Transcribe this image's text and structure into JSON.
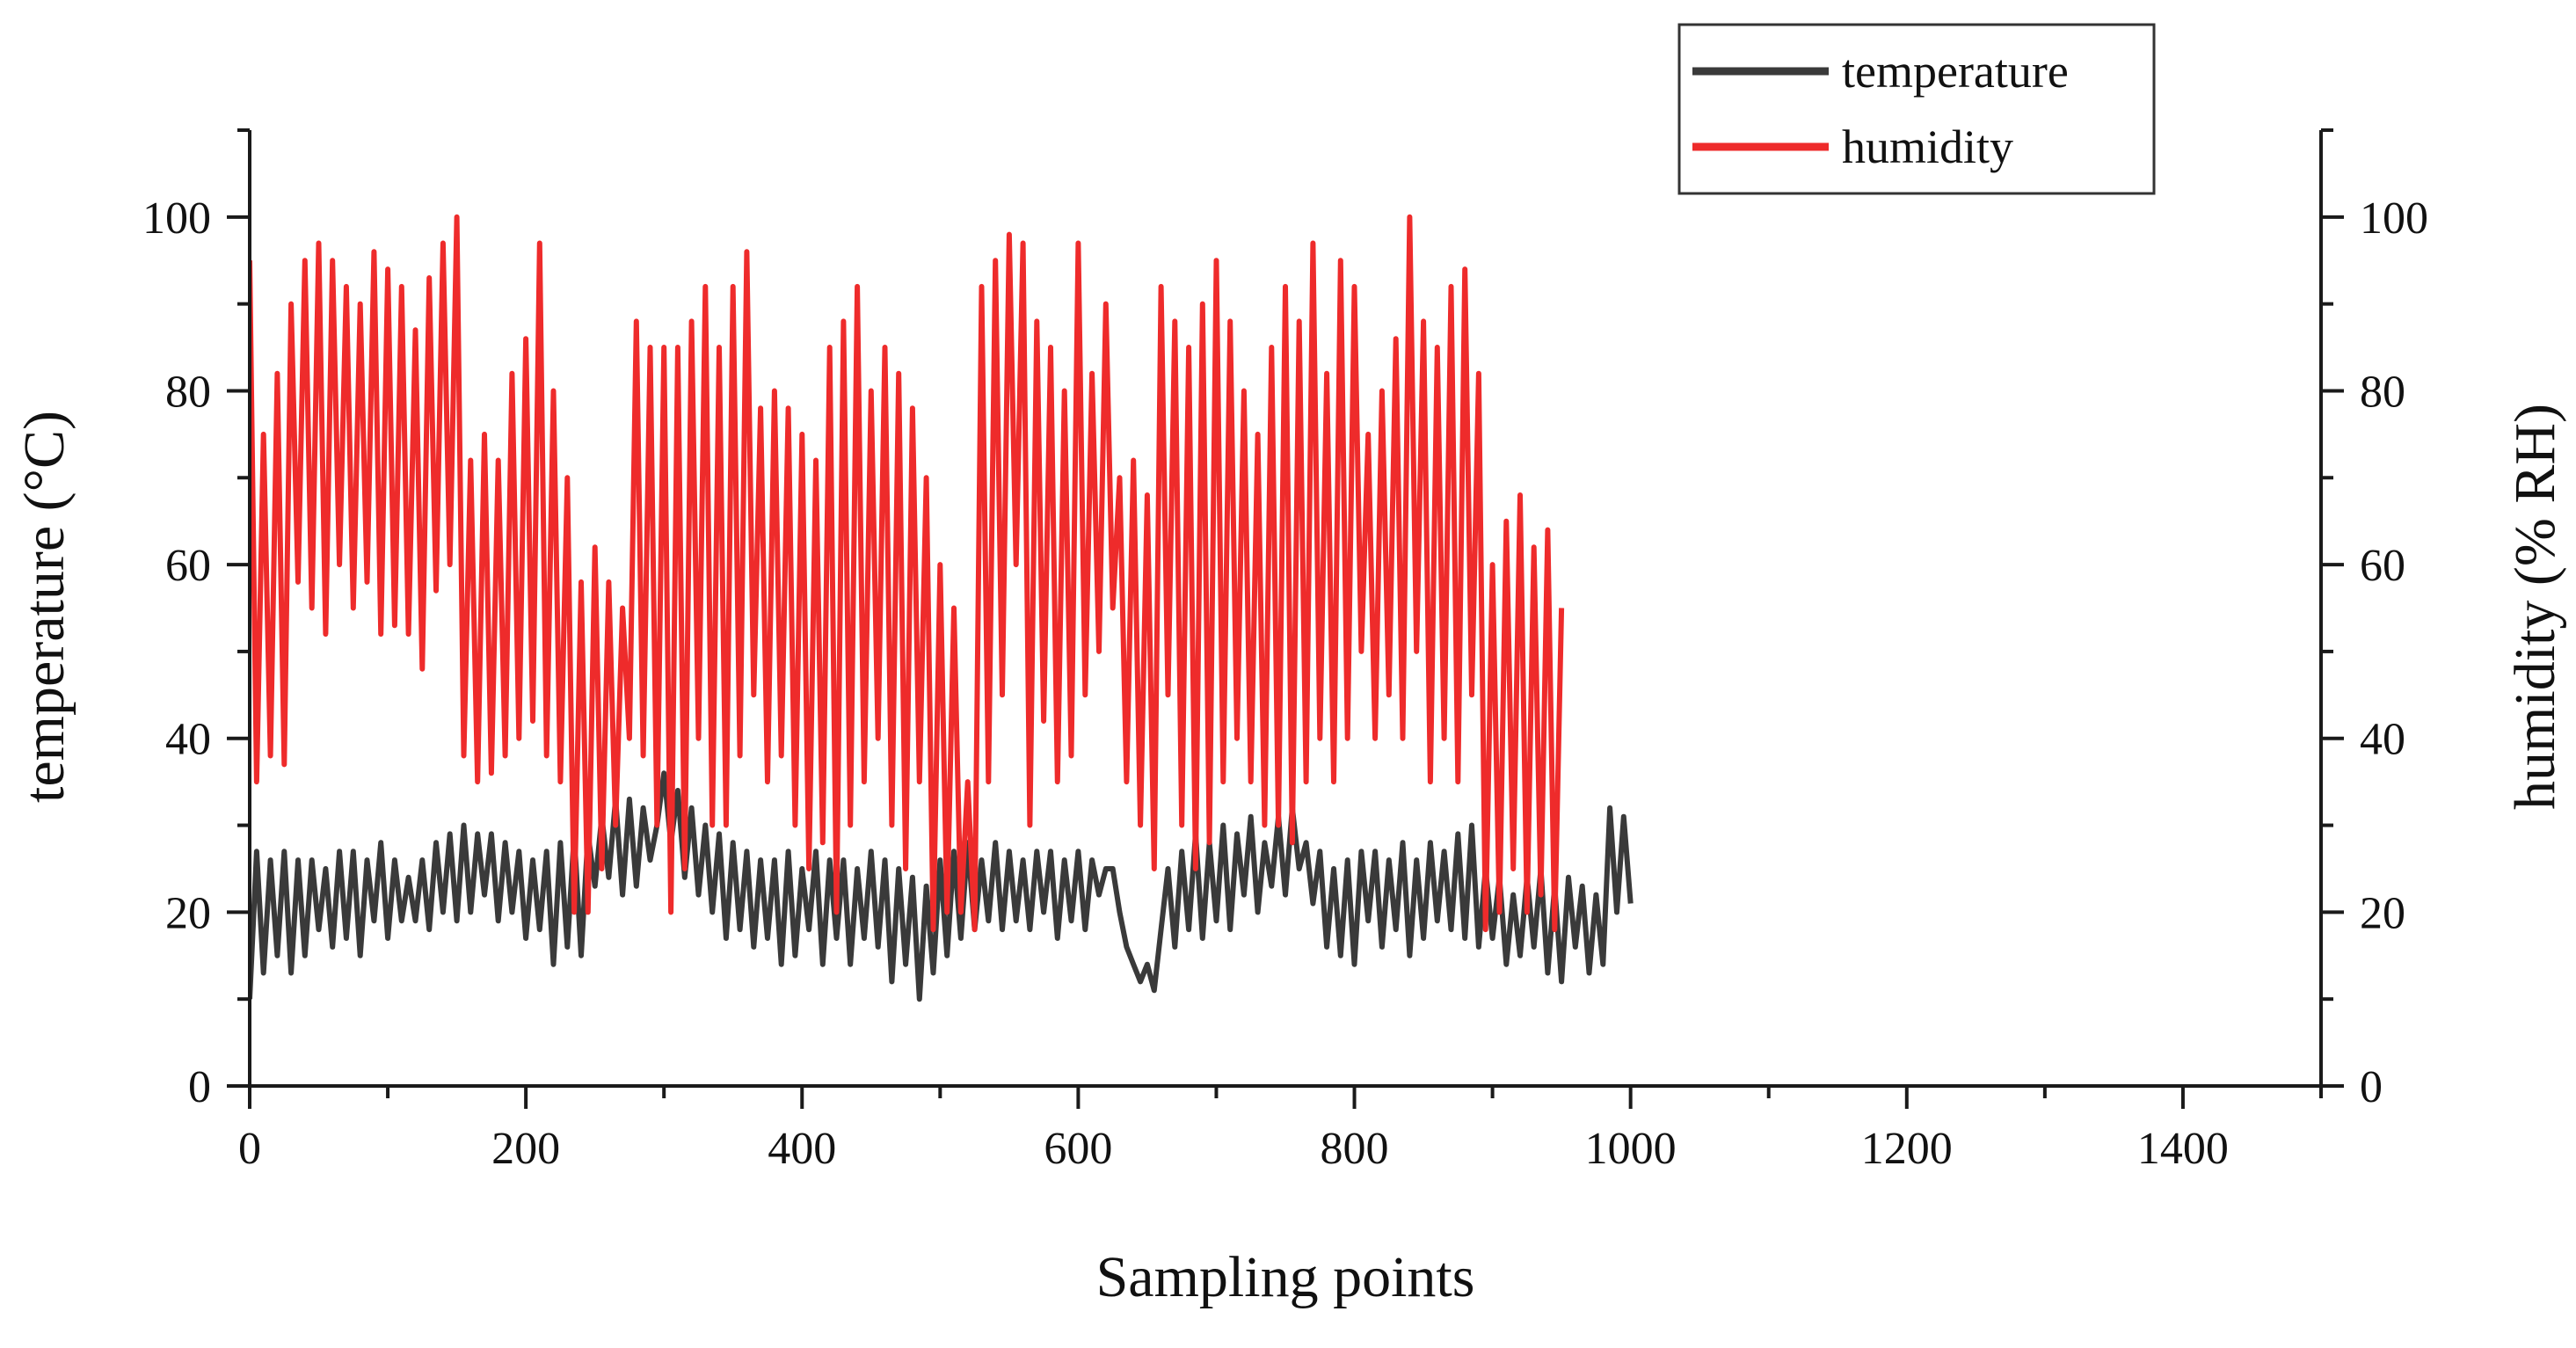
{
  "chart_data": {
    "type": "line",
    "x_axis": {
      "label": "Sampling points",
      "range": [
        0,
        1500
      ],
      "ticks": [
        0,
        200,
        400,
        600,
        800,
        1000,
        1200,
        1400
      ]
    },
    "y_left": {
      "label": "temperature (°C)",
      "range": [
        0,
        110
      ],
      "ticks": [
        0,
        20,
        40,
        60,
        80,
        100
      ]
    },
    "y_right": {
      "label": "humidity (% RH)",
      "range": [
        0,
        110
      ],
      "ticks": [
        0,
        20,
        40,
        60,
        80,
        100
      ]
    },
    "legend": {
      "position": "top-right",
      "entries": [
        "temperature",
        "humidity"
      ]
    },
    "colors": {
      "temperature": "#3a3a3a",
      "humidity": "#ee2b2b"
    },
    "series": [
      {
        "name": "temperature",
        "axis": "left",
        "x_step": 5,
        "values": [
          10,
          27,
          13,
          26,
          15,
          27,
          13,
          26,
          15,
          26,
          18,
          25,
          16,
          27,
          17,
          27,
          15,
          26,
          19,
          28,
          17,
          26,
          19,
          24,
          19,
          26,
          18,
          28,
          20,
          29,
          19,
          30,
          20,
          29,
          22,
          29,
          19,
          28,
          20,
          27,
          17,
          26,
          18,
          27,
          14,
          28,
          16,
          29,
          15,
          29,
          23,
          31,
          24,
          33,
          22,
          33,
          23,
          32,
          26,
          30,
          36,
          28,
          34,
          24,
          32,
          22,
          30,
          20,
          29,
          17,
          28,
          18,
          27,
          16,
          26,
          17,
          26,
          14,
          27,
          15,
          25,
          18,
          27,
          14,
          26,
          17,
          26,
          14,
          25,
          17,
          27,
          16,
          26,
          12,
          25,
          14,
          24,
          10,
          23,
          13,
          26,
          15,
          27,
          17,
          28,
          18,
          26,
          19,
          28,
          18,
          27,
          19,
          26,
          18,
          27,
          20,
          27,
          17,
          26,
          19,
          27,
          18,
          26,
          22,
          25,
          25,
          20,
          16,
          14,
          12,
          14,
          11,
          18,
          25,
          16,
          27,
          18,
          29,
          17,
          28,
          19,
          30,
          18,
          29,
          22,
          31,
          20,
          28,
          23,
          31,
          22,
          32,
          25,
          28,
          21,
          27,
          16,
          25,
          15,
          26,
          14,
          27,
          19,
          27,
          16,
          26,
          18,
          28,
          15,
          26,
          17,
          28,
          19,
          27,
          18,
          29,
          17,
          30,
          16,
          25,
          17,
          24,
          14,
          22,
          15,
          24,
          16,
          25,
          13,
          23,
          12,
          24,
          16,
          23,
          13,
          22,
          14,
          32,
          20,
          31,
          21
        ]
      },
      {
        "name": "humidity",
        "axis": "right",
        "x_step": 5,
        "values": [
          95,
          35,
          75,
          38,
          82,
          37,
          90,
          58,
          95,
          55,
          97,
          52,
          95,
          60,
          92,
          55,
          90,
          58,
          96,
          52,
          94,
          53,
          92,
          52,
          87,
          48,
          93,
          57,
          97,
          60,
          100,
          38,
          72,
          35,
          75,
          36,
          72,
          38,
          82,
          40,
          86,
          42,
          97,
          38,
          80,
          35,
          70,
          20,
          58,
          20,
          62,
          25,
          58,
          30,
          55,
          40,
          88,
          38,
          85,
          30,
          85,
          20,
          85,
          25,
          88,
          40,
          92,
          30,
          85,
          30,
          92,
          38,
          96,
          45,
          78,
          35,
          80,
          38,
          78,
          30,
          75,
          25,
          72,
          28,
          85,
          20,
          88,
          30,
          92,
          35,
          80,
          40,
          85,
          30,
          82,
          25,
          78,
          35,
          70,
          18,
          60,
          20,
          55,
          20,
          35,
          18,
          92,
          35,
          95,
          45,
          98,
          60,
          97,
          30,
          88,
          42,
          85,
          35,
          80,
          38,
          97,
          45,
          82,
          50,
          90,
          55,
          70,
          35,
          72,
          30,
          68,
          25,
          92,
          45,
          88,
          30,
          85,
          25,
          90,
          28,
          95,
          35,
          88,
          40,
          80,
          35,
          75,
          30,
          85,
          30,
          92,
          28,
          88,
          35,
          97,
          40,
          82,
          35,
          95,
          40,
          92,
          50,
          75,
          40,
          80,
          45,
          86,
          40,
          100,
          50,
          88,
          35,
          85,
          40,
          92,
          35,
          94,
          45,
          82,
          18,
          60,
          20,
          65,
          25,
          68,
          20,
          62,
          22,
          64,
          18,
          55
        ]
      }
    ]
  }
}
